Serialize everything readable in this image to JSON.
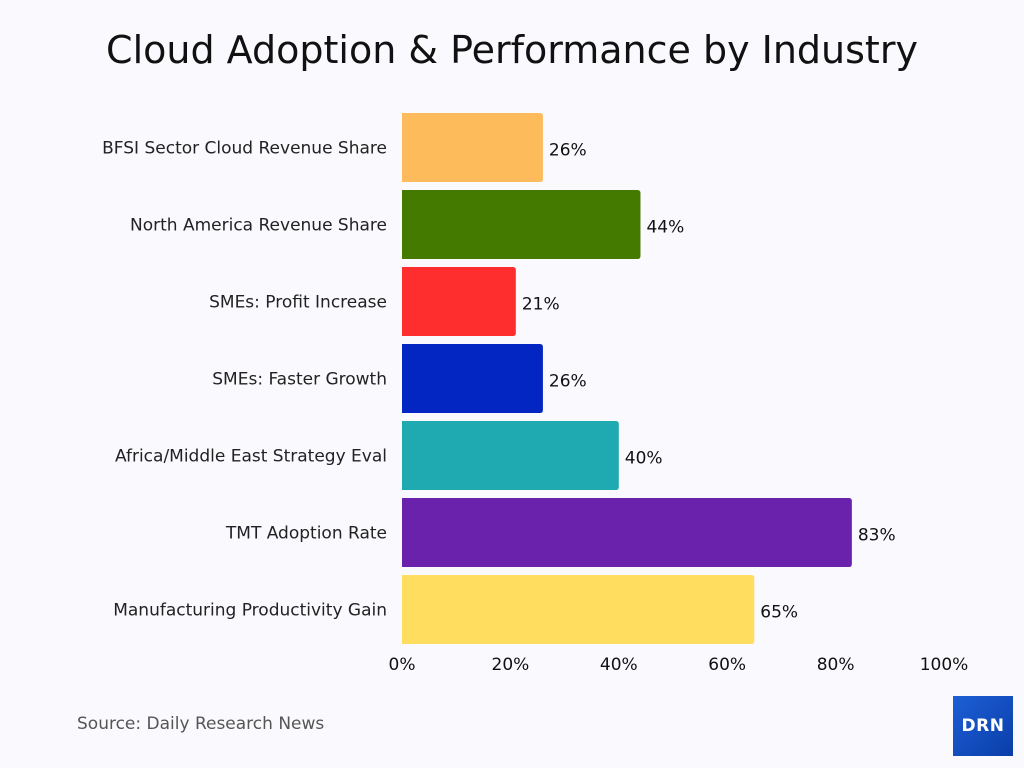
{
  "chart_data": {
    "type": "bar",
    "orientation": "horizontal",
    "title": "Cloud Adoption & Performance by Industry",
    "categories": [
      "BFSI Sector Cloud Revenue Share",
      "North America Revenue Share",
      "SMEs: Profit Increase",
      "SMEs: Faster Growth",
      "Africa/Middle East Strategy Eval",
      "TMT Adoption Rate",
      "Manufacturing Productivity Gain"
    ],
    "values": [
      26,
      44,
      21,
      26,
      40,
      83,
      65
    ],
    "data_labels": [
      "26%",
      "44%",
      "21%",
      "26%",
      "40%",
      "83%",
      "65%"
    ],
    "colors": [
      "#fdbb5c",
      "#457a00",
      "#fe2e2e",
      "#0326c2",
      "#1fa9b0",
      "#6a22ad",
      "#ffdd5e"
    ],
    "xlim": [
      0,
      100
    ],
    "x_ticks": [
      "0%",
      "20%",
      "40%",
      "60%",
      "80%",
      "100%"
    ],
    "xlabel": "",
    "ylabel": "",
    "grid": false,
    "legend": "none"
  },
  "footer": {
    "source": "Source: Daily Research News",
    "logo_text": "DRN"
  }
}
